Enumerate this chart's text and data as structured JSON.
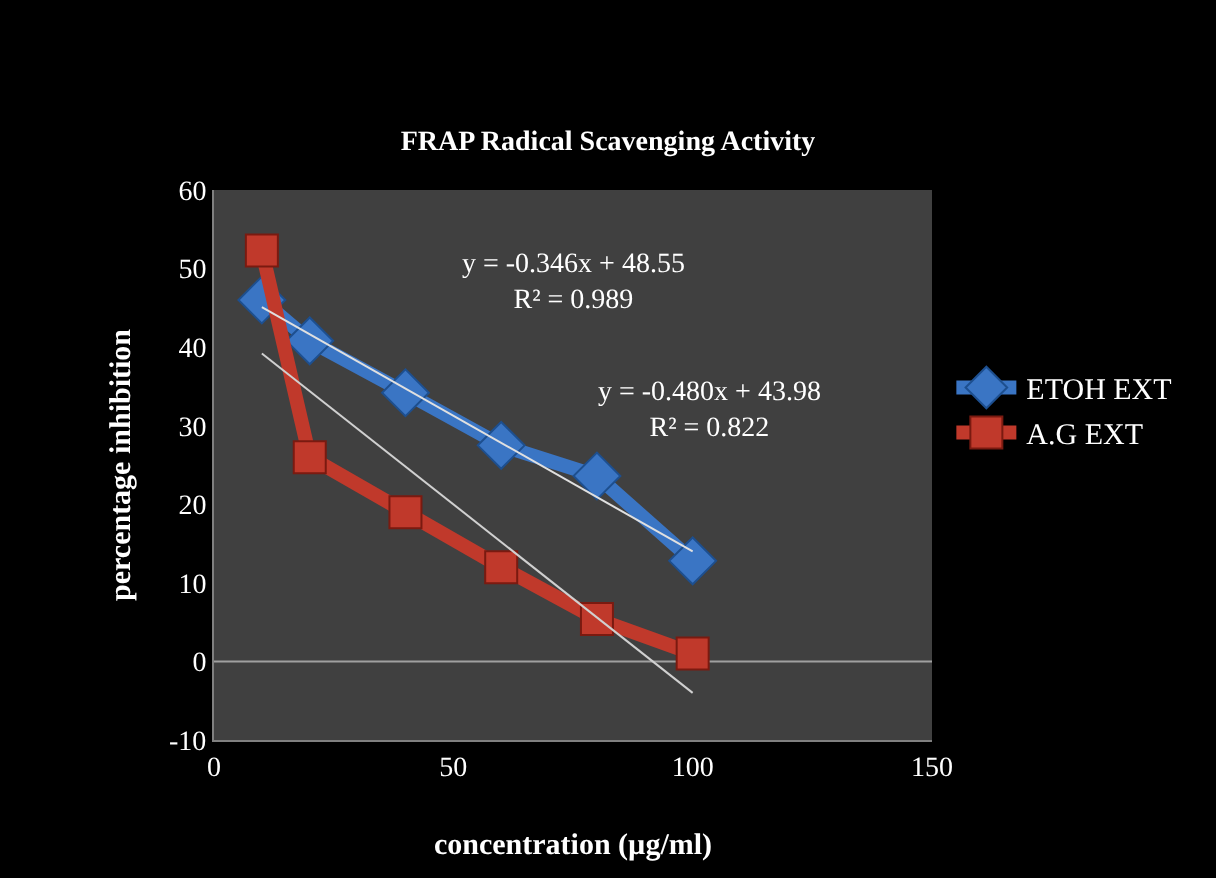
{
  "chart_data": {
    "type": "line",
    "title": "FRAP Radical Scavenging Activity",
    "xlabel": "concentration (µg/ml)",
    "ylabel": "percentage inhibition",
    "xlim": [
      0,
      150
    ],
    "xticks": [
      0,
      50,
      100,
      150
    ],
    "ylim": [
      -10,
      60
    ],
    "yticks": [
      -10,
      0,
      10,
      20,
      30,
      40,
      50,
      60
    ],
    "grid": false,
    "legend": "right",
    "ref_lines": [
      {
        "axis": "y",
        "value": 0,
        "color": "#a0a0a0"
      }
    ],
    "series": [
      {
        "name": "ETOH EXT",
        "color": "#3a75c4",
        "marker": "diamond",
        "x": [
          10,
          20,
          40,
          60,
          80,
          100
        ],
        "values": [
          46,
          40.8,
          34.2,
          27.5,
          23.6,
          12.8
        ]
      },
      {
        "name": "A.G EXT",
        "color": "#c0392b",
        "marker": "square",
        "x": [
          10,
          20,
          40,
          60,
          80,
          100
        ],
        "values": [
          52.3,
          26,
          19,
          12,
          5.4,
          1
        ]
      },
      {
        "color": "#e0e0e0",
        "marker": "none",
        "x": [
          10,
          100
        ],
        "values": [
          45.1,
          14.0
        ]
      },
      {
        "color": "#d0d0d0",
        "marker": "none",
        "x": [
          10,
          100
        ],
        "values": [
          39.2,
          -4.0
        ]
      }
    ],
    "annotations": [
      "y = -0.346x + 48.55\nR² = 0.989",
      "y = -0.480x + 43.98\nR² = 0.822"
    ]
  }
}
